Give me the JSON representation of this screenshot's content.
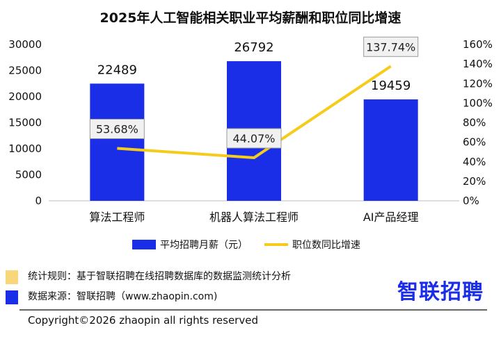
{
  "title": "2025年人工智能相关职业平均薪酬和职位同比增速",
  "colors": {
    "bar": "#1a2ee8",
    "line": "#f5cc1c",
    "label_box_fill": "#f1f1f1",
    "label_box_stroke": "#9a9a9a",
    "logo": "#1a2ee8",
    "note_marker_yellow": "#f7d77a",
    "note_marker_blue": "#1a2ee8"
  },
  "chart_data": {
    "type": "bar",
    "categories": [
      "算法工程师",
      "机器人算法工程师",
      "AI产品经理"
    ],
    "series": [
      {
        "name": "平均招聘月薪（元）",
        "type": "bar",
        "axis": "left",
        "values": [
          22489,
          26792,
          19459
        ],
        "labels": [
          "22489",
          "26792",
          "19459"
        ]
      },
      {
        "name": "职位数同比增速",
        "type": "line",
        "axis": "right",
        "values": [
          53.68,
          44.07,
          137.74
        ],
        "labels": [
          "53.68%",
          "44.07%",
          "137.74%"
        ]
      }
    ],
    "y_left": {
      "lim": [
        0,
        30000
      ],
      "ticks": [
        0,
        5000,
        10000,
        15000,
        20000,
        25000,
        30000
      ],
      "tick_labels": [
        "0",
        "5000",
        "10000",
        "15000",
        "20000",
        "25000",
        "30000"
      ]
    },
    "y_right": {
      "lim": [
        0,
        160
      ],
      "ticks": [
        0,
        20,
        40,
        60,
        80,
        100,
        120,
        140,
        160
      ],
      "tick_labels": [
        "0%",
        "20%",
        "40%",
        "60%",
        "80%",
        "100%",
        "120%",
        "140%",
        "160%"
      ]
    },
    "grid": false,
    "legend_position": "bottom"
  },
  "legend": {
    "bar_label": "平均招聘月薪（元）",
    "line_label": "职位数同比增速"
  },
  "notes": {
    "rule": "统计规则：基于智联招聘在线招聘数据库的数据监测统计分析",
    "source": "数据来源：智联招聘（www.zhaopin.com)"
  },
  "logo": "智联招聘",
  "copyright": "Copyright©2026 zhaopin all rights reserved"
}
